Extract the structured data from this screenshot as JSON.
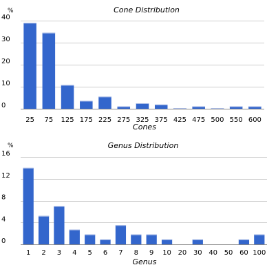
{
  "chart_data": [
    {
      "type": "bar",
      "title": "Cone Distribution",
      "xlabel": "Cones",
      "ylabel": "%",
      "ylim": [
        0,
        40
      ],
      "yticks": [
        0,
        10,
        20,
        30,
        40
      ],
      "categories": [
        "25",
        "75",
        "125",
        "175",
        "225",
        "275",
        "325",
        "375",
        "425",
        "475",
        "500",
        "550",
        "600"
      ],
      "values": [
        39,
        34.5,
        10.8,
        3.6,
        5.5,
        1.1,
        2.5,
        1.9,
        0.3,
        1.1,
        0.3,
        1.1,
        1.1
      ],
      "grid": true,
      "bar_color": "#3366cc"
    },
    {
      "type": "bar",
      "title": "Genus Distribution",
      "xlabel": "Genus",
      "ylabel": "%",
      "ylim": [
        0,
        16
      ],
      "yticks": [
        0,
        4,
        8,
        12,
        16
      ],
      "categories": [
        "1",
        "2",
        "3",
        "4",
        "5",
        "6",
        "7",
        "8",
        "9",
        "10",
        "20",
        "30",
        "40",
        "50",
        "60",
        "100"
      ],
      "values": [
        14,
        5.2,
        7,
        2.7,
        1.8,
        0.9,
        3.5,
        1.8,
        1.8,
        0.9,
        0,
        0.9,
        0,
        0,
        0.9,
        1.8
      ],
      "grid": true,
      "bar_color": "#3366cc"
    }
  ]
}
